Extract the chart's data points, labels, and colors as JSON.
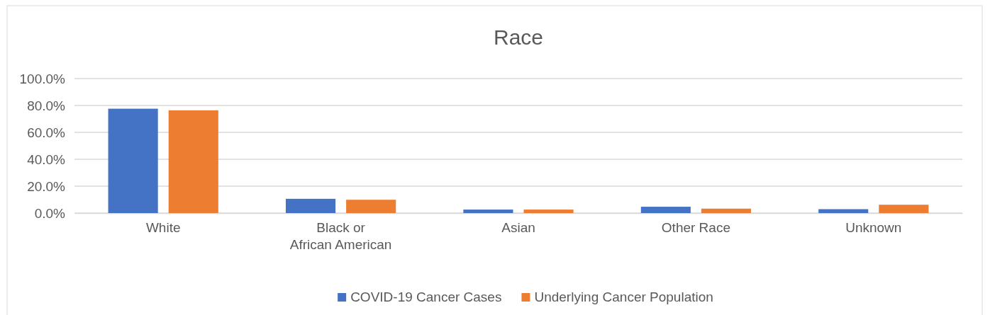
{
  "chart_data": {
    "type": "bar",
    "title": "Race",
    "categories": [
      "White",
      "Black or African American",
      "Asian",
      "Other Race",
      "Unknown"
    ],
    "series": [
      {
        "name": "COVID-19 Cancer Cases",
        "color": "#4472c4",
        "values": [
          77.6,
          10.6,
          2.6,
          4.7,
          2.9
        ]
      },
      {
        "name": "Underlying Cancer Population",
        "color": "#ed7d31",
        "values": [
          76.4,
          9.9,
          2.6,
          3.3,
          6.2
        ]
      }
    ],
    "ylim": [
      0,
      100
    ],
    "yticks": [
      {
        "value": 0,
        "label": "0.0%"
      },
      {
        "value": 20,
        "label": "20.0%"
      },
      {
        "value": 40,
        "label": "40.0%"
      },
      {
        "value": 60,
        "label": "60.0%"
      },
      {
        "value": 80,
        "label": "80.0%"
      },
      {
        "value": 100,
        "label": "100.0%"
      }
    ],
    "grid": "y",
    "legend": "bottom"
  }
}
